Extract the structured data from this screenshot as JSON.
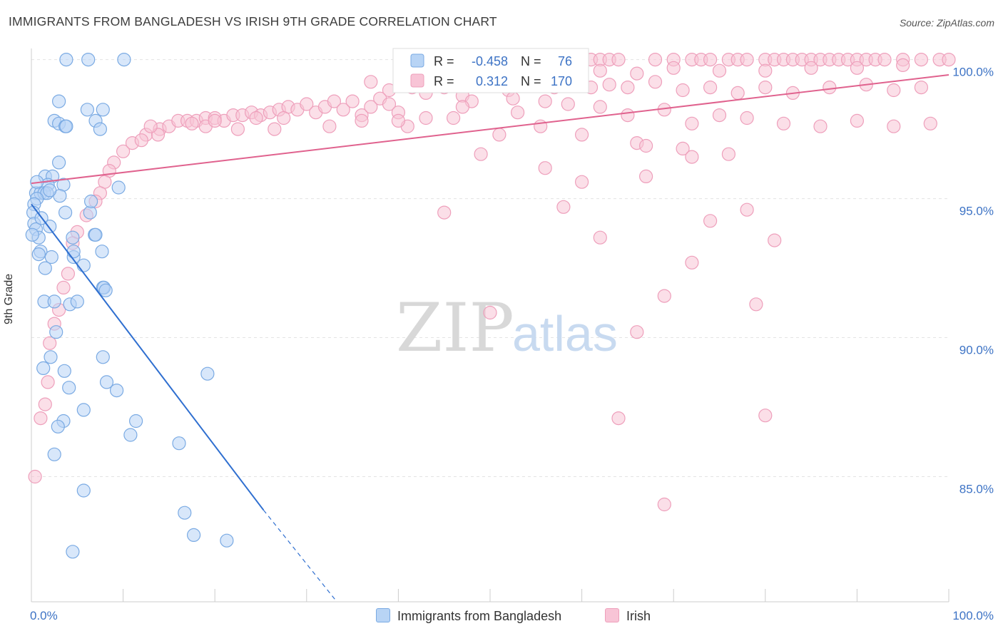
{
  "title": "IMMIGRANTS FROM BANGLADESH VS IRISH 9TH GRADE CORRELATION CHART",
  "source": "Source: ZipAtlas.com",
  "watermark": {
    "zip": "ZIP",
    "atlas": "atlas"
  },
  "colors": {
    "blue_fill": "#b8d4f5",
    "blue_stroke": "#7aaae3",
    "blue_line": "#2f6fd0",
    "pink_fill": "#f8c4d6",
    "pink_stroke": "#ee9fbb",
    "pink_line": "#e0628e",
    "value_text": "#3d73c5",
    "grid": "#e3e3e3"
  },
  "stats": {
    "blue": {
      "r_label": "R =",
      "r_value": "-0.458",
      "n_label": "N =",
      "n_value": "76"
    },
    "pink": {
      "r_label": "R =",
      "r_value": "0.312",
      "n_label": "N =",
      "n_value": "170"
    }
  },
  "legend": [
    "Immigrants from Bangladesh",
    "Irish"
  ],
  "chart_data": {
    "type": "scatter",
    "title": "IMMIGRANTS FROM BANGLADESH VS IRISH 9TH GRADE CORRELATION CHART",
    "xlabel": "",
    "ylabel": "9th Grade",
    "xlim": [
      0,
      100
    ],
    "ylim": [
      80.5,
      100.4
    ],
    "x_tick_labels": [
      "0.0%",
      "100.0%"
    ],
    "y_ticks": [
      85,
      90,
      95,
      100
    ],
    "y_tick_labels": [
      "85.0%",
      "90.0%",
      "95.0%",
      "100.0%"
    ],
    "grid": true,
    "legend_position": "bottom-center",
    "series": [
      {
        "name": "Immigrants from Bangladesh",
        "r": -0.458,
        "n": 76,
        "trend_solid": [
          [
            0,
            94.8
          ],
          [
            25.3,
            83.8
          ]
        ],
        "trend_dashed": [
          [
            25.3,
            83.8
          ],
          [
            33.3,
            80.5
          ]
        ],
        "points": [
          [
            3.8,
            100
          ],
          [
            6.2,
            100
          ],
          [
            10.1,
            100
          ],
          [
            3.0,
            98.5
          ],
          [
            6.1,
            98.2
          ],
          [
            7.8,
            98.2
          ],
          [
            2.5,
            97.8
          ],
          [
            3.0,
            97.7
          ],
          [
            3.7,
            97.6
          ],
          [
            3.8,
            97.6
          ],
          [
            7.0,
            97.8
          ],
          [
            7.5,
            97.5
          ],
          [
            3.0,
            96.3
          ],
          [
            1.5,
            95.8
          ],
          [
            2.3,
            95.8
          ],
          [
            1.8,
            95.5
          ],
          [
            3.5,
            95.5
          ],
          [
            9.5,
            95.4
          ],
          [
            0.5,
            95.2
          ],
          [
            1.0,
            95.2
          ],
          [
            1.4,
            95.2
          ],
          [
            1.7,
            95.2
          ],
          [
            0.6,
            95.0
          ],
          [
            3.1,
            95.1
          ],
          [
            0.3,
            94.8
          ],
          [
            0.2,
            94.5
          ],
          [
            3.7,
            94.5
          ],
          [
            6.4,
            94.5
          ],
          [
            6.5,
            94.9
          ],
          [
            0.3,
            94.1
          ],
          [
            0.5,
            93.9
          ],
          [
            2.0,
            94.0
          ],
          [
            0.8,
            93.6
          ],
          [
            4.5,
            93.6
          ],
          [
            6.9,
            93.7
          ],
          [
            7.0,
            93.7
          ],
          [
            1.0,
            93.1
          ],
          [
            7.7,
            93.1
          ],
          [
            2.2,
            92.9
          ],
          [
            0.8,
            93.0
          ],
          [
            4.6,
            92.9
          ],
          [
            1.5,
            92.5
          ],
          [
            5.7,
            92.6
          ],
          [
            7.8,
            91.8
          ],
          [
            7.9,
            91.8
          ],
          [
            1.4,
            91.3
          ],
          [
            2.5,
            91.3
          ],
          [
            4.2,
            91.2
          ],
          [
            5.0,
            91.3
          ],
          [
            2.7,
            90.2
          ],
          [
            2.1,
            89.3
          ],
          [
            7.8,
            89.3
          ],
          [
            1.3,
            88.9
          ],
          [
            3.6,
            88.8
          ],
          [
            19.2,
            88.7
          ],
          [
            4.1,
            88.2
          ],
          [
            8.2,
            88.4
          ],
          [
            9.3,
            88.1
          ],
          [
            5.7,
            87.4
          ],
          [
            3.5,
            87.0
          ],
          [
            11.4,
            87.0
          ],
          [
            2.9,
            86.8
          ],
          [
            10.8,
            86.5
          ],
          [
            16.1,
            86.2
          ],
          [
            2.5,
            85.8
          ],
          [
            5.7,
            84.5
          ],
          [
            16.7,
            83.7
          ],
          [
            17.7,
            82.9
          ],
          [
            21.3,
            82.7
          ],
          [
            4.5,
            82.3
          ],
          [
            0.1,
            93.7
          ],
          [
            0.6,
            95.6
          ],
          [
            1.1,
            94.3
          ],
          [
            2.0,
            95.3
          ],
          [
            4.6,
            93.1
          ],
          [
            8.1,
            91.7
          ]
        ]
      },
      {
        "name": "Irish",
        "r": 0.312,
        "n": 170,
        "trend_solid": [
          [
            0,
            95.55
          ],
          [
            100,
            99.45
          ]
        ],
        "points": [
          [
            60,
            100
          ],
          [
            61,
            100
          ],
          [
            62,
            100
          ],
          [
            63,
            100
          ],
          [
            64,
            100
          ],
          [
            68,
            100
          ],
          [
            70,
            100
          ],
          [
            72,
            100
          ],
          [
            73,
            100
          ],
          [
            74,
            100
          ],
          [
            76,
            100
          ],
          [
            77,
            100
          ],
          [
            78,
            100
          ],
          [
            80,
            100
          ],
          [
            81,
            100
          ],
          [
            82,
            100
          ],
          [
            83,
            100
          ],
          [
            84,
            100
          ],
          [
            85,
            100
          ],
          [
            86,
            100
          ],
          [
            87,
            100
          ],
          [
            88,
            100
          ],
          [
            89,
            100
          ],
          [
            90,
            100
          ],
          [
            91,
            100
          ],
          [
            92,
            100
          ],
          [
            93,
            100
          ],
          [
            95,
            100
          ],
          [
            97,
            100
          ],
          [
            99,
            100
          ],
          [
            100,
            100
          ],
          [
            58,
            99.8
          ],
          [
            62,
            99.6
          ],
          [
            66,
            99.5
          ],
          [
            70,
            99.7
          ],
          [
            75,
            99.6
          ],
          [
            80,
            99.6
          ],
          [
            85,
            99.7
          ],
          [
            90,
            99.7
          ],
          [
            95,
            99.8
          ],
          [
            37.0,
            99.2
          ],
          [
            39.0,
            98.9
          ],
          [
            41.5,
            99.0
          ],
          [
            43.0,
            98.8
          ],
          [
            45.0,
            99.0
          ],
          [
            47.0,
            98.7
          ],
          [
            50.0,
            99.1
          ],
          [
            52.0,
            98.9
          ],
          [
            55.0,
            99.3
          ],
          [
            57.0,
            99.0
          ],
          [
            59.0,
            99.2
          ],
          [
            61.0,
            99.0
          ],
          [
            63.0,
            99.1
          ],
          [
            65.0,
            99.0
          ],
          [
            68.0,
            99.2
          ],
          [
            71.0,
            98.9
          ],
          [
            74.0,
            99.0
          ],
          [
            77.0,
            98.8
          ],
          [
            80.0,
            99.0
          ],
          [
            83.0,
            98.8
          ],
          [
            87.0,
            99.0
          ],
          [
            91.0,
            99.1
          ],
          [
            94.0,
            98.9
          ],
          [
            97.0,
            99.0
          ],
          [
            48.0,
            98.5
          ],
          [
            52.5,
            98.6
          ],
          [
            56.0,
            98.5
          ],
          [
            58.5,
            98.4
          ],
          [
            62.0,
            98.3
          ],
          [
            65.0,
            98.0
          ],
          [
            69.0,
            98.2
          ],
          [
            72.0,
            97.7
          ],
          [
            75.0,
            98.0
          ],
          [
            78.0,
            97.9
          ],
          [
            82.0,
            97.7
          ],
          [
            86.0,
            97.6
          ],
          [
            90.0,
            97.8
          ],
          [
            94.0,
            97.6
          ],
          [
            98.0,
            97.7
          ],
          [
            10.0,
            96.7
          ],
          [
            11.0,
            97.0
          ],
          [
            12.5,
            97.3
          ],
          [
            14.0,
            97.5
          ],
          [
            15.0,
            97.6
          ],
          [
            16.0,
            97.8
          ],
          [
            17.0,
            97.8
          ],
          [
            18.0,
            97.8
          ],
          [
            19.0,
            97.9
          ],
          [
            20.0,
            97.9
          ],
          [
            21.0,
            97.8
          ],
          [
            22.0,
            98.0
          ],
          [
            23.0,
            98.0
          ],
          [
            24.0,
            98.1
          ],
          [
            25.0,
            98.0
          ],
          [
            26.0,
            98.1
          ],
          [
            27.0,
            98.2
          ],
          [
            28.0,
            98.3
          ],
          [
            29.0,
            98.2
          ],
          [
            30.0,
            98.4
          ],
          [
            31.0,
            98.1
          ],
          [
            32.0,
            98.3
          ],
          [
            33.0,
            98.5
          ],
          [
            34.0,
            98.2
          ],
          [
            35.0,
            98.5
          ],
          [
            36.0,
            98.0
          ],
          [
            37.0,
            98.3
          ],
          [
            38.0,
            98.6
          ],
          [
            39.0,
            98.4
          ],
          [
            40.0,
            98.1
          ],
          [
            9.0,
            96.3
          ],
          [
            8.5,
            96.0
          ],
          [
            8.0,
            95.6
          ],
          [
            7.5,
            95.2
          ],
          [
            7.0,
            94.9
          ],
          [
            6.0,
            94.4
          ],
          [
            5.0,
            93.8
          ],
          [
            4.5,
            93.4
          ],
          [
            4.0,
            92.3
          ],
          [
            3.5,
            91.8
          ],
          [
            3.0,
            91.0
          ],
          [
            2.5,
            90.5
          ],
          [
            2.0,
            89.8
          ],
          [
            1.8,
            88.4
          ],
          [
            1.5,
            87.6
          ],
          [
            1.0,
            87.1
          ],
          [
            0.4,
            85.0
          ],
          [
            13.8,
            97.3
          ],
          [
            17.5,
            97.7
          ],
          [
            22.5,
            97.5
          ],
          [
            27.5,
            97.9
          ],
          [
            32.5,
            97.6
          ],
          [
            36.0,
            97.8
          ],
          [
            41.0,
            97.6
          ],
          [
            46.0,
            97.9
          ],
          [
            51.0,
            97.3
          ],
          [
            55.5,
            97.6
          ],
          [
            60.0,
            97.3
          ],
          [
            66.0,
            97.0
          ],
          [
            71.0,
            96.8
          ],
          [
            76.0,
            96.6
          ],
          [
            67.0,
            96.9
          ],
          [
            72.0,
            96.5
          ],
          [
            49.0,
            96.6
          ],
          [
            56.0,
            96.1
          ],
          [
            60.0,
            95.6
          ],
          [
            67.0,
            95.8
          ],
          [
            58.0,
            94.7
          ],
          [
            78.0,
            94.6
          ],
          [
            74.0,
            94.2
          ],
          [
            45.0,
            94.5
          ],
          [
            62.0,
            93.6
          ],
          [
            81.0,
            93.5
          ],
          [
            72.0,
            92.7
          ],
          [
            69.0,
            91.5
          ],
          [
            79.0,
            91.2
          ],
          [
            50.0,
            90.9
          ],
          [
            66.0,
            90.2
          ],
          [
            64.0,
            87.1
          ],
          [
            80.0,
            87.2
          ],
          [
            69.0,
            84.0
          ],
          [
            40.0,
            97.8
          ],
          [
            47.0,
            98.3
          ],
          [
            53.0,
            98.1
          ],
          [
            19.0,
            97.6
          ],
          [
            12.0,
            97.1
          ],
          [
            26.5,
            97.5
          ],
          [
            43.0,
            97.9
          ],
          [
            13.0,
            97.6
          ],
          [
            20.0,
            97.8
          ],
          [
            24.5,
            97.9
          ]
        ]
      }
    ]
  }
}
